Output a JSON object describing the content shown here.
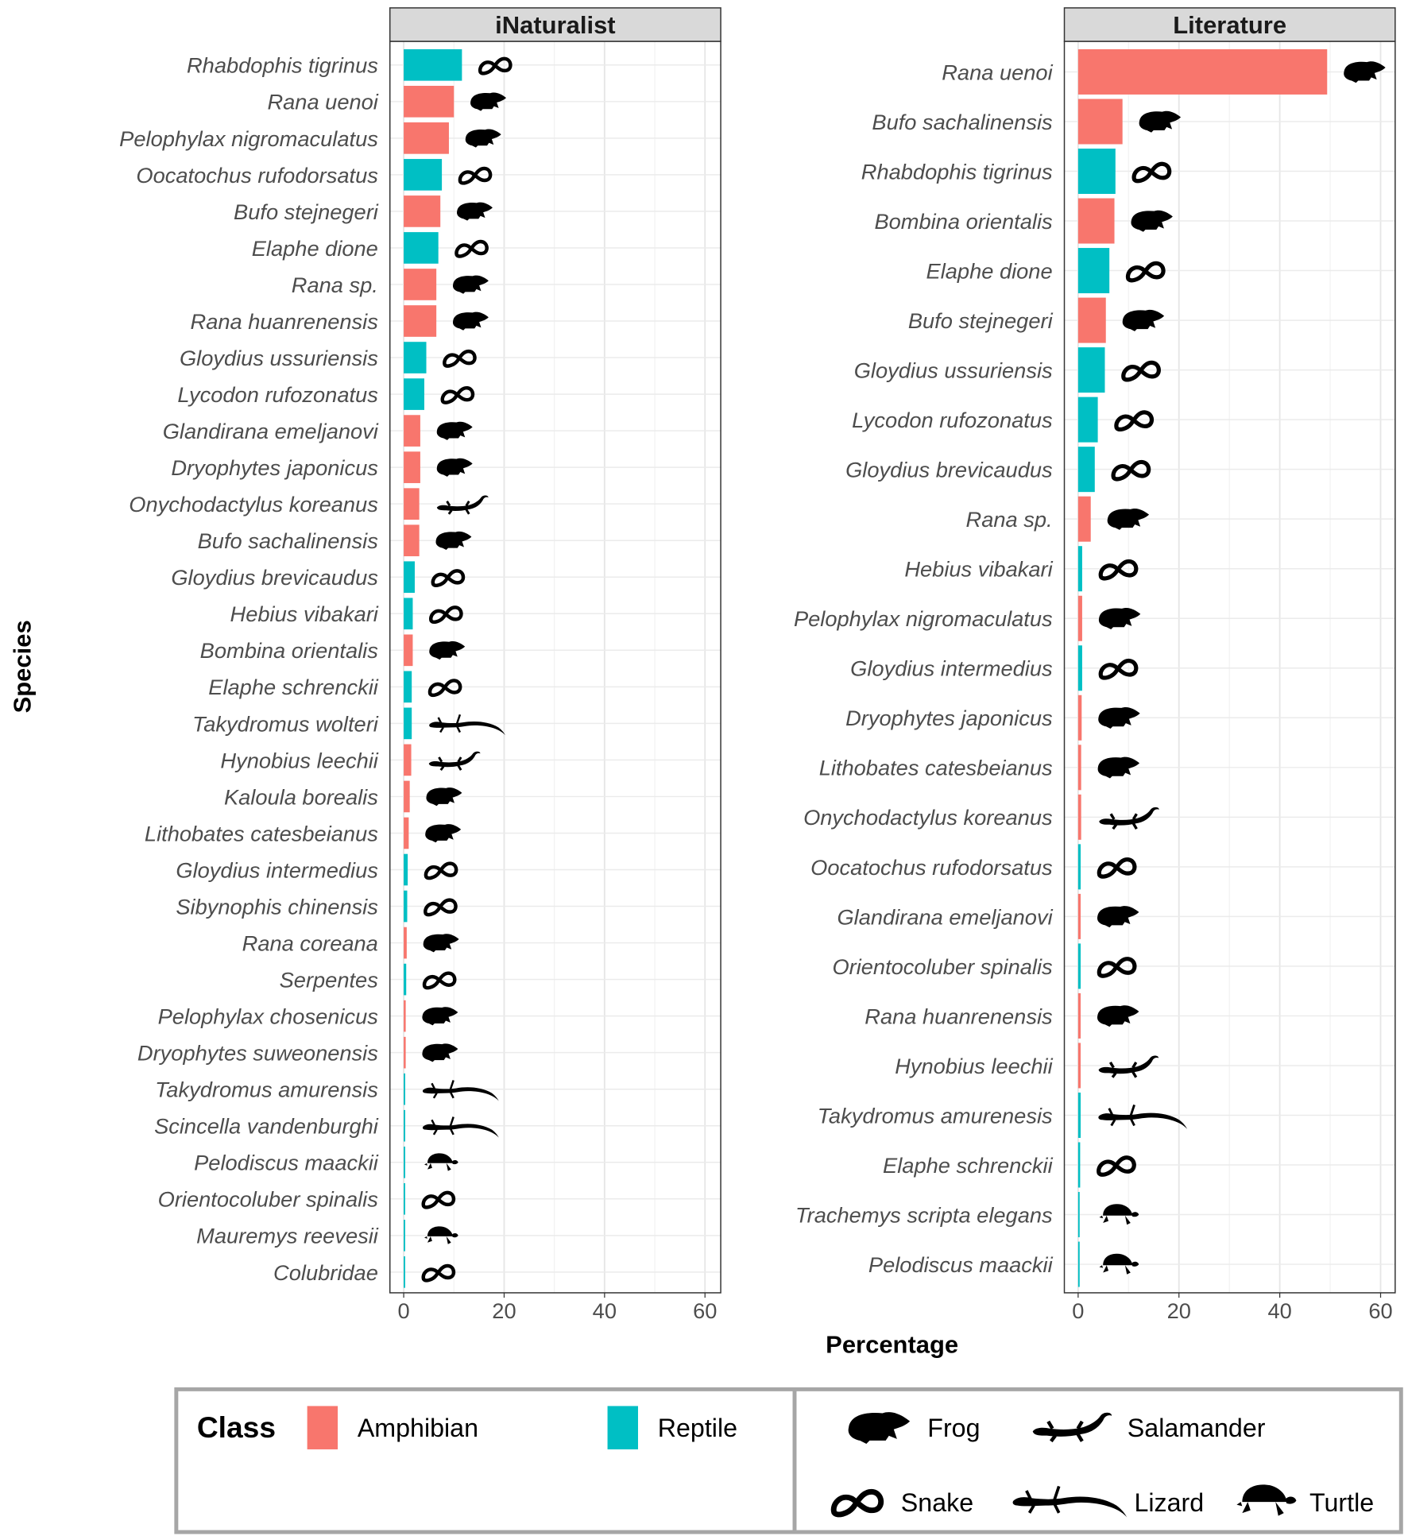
{
  "chart_data": [
    {
      "type": "bar",
      "orientation": "horizontal",
      "title": "iNaturalist",
      "xlim": [
        0,
        60
      ],
      "xticks": [
        0,
        20,
        40,
        60
      ],
      "species": [
        "Rhabdophis tigrinus",
        "Rana uenoi",
        "Pelophylax nigromaculatus",
        "Oocatochus rufodorsatus",
        "Bufo stejnegeri",
        "Elaphe dione",
        "Rana sp.",
        "Rana huanrenensis",
        "Gloydius ussuriensis",
        "Lycodon rufozonatus",
        "Glandirana emeljanovi",
        "Dryophytes japonicus",
        "Onychodactylus koreanus",
        "Bufo sachalinensis",
        "Gloydius brevicaudus",
        "Hebius vibakari",
        "Bombina orientalis",
        "Elaphe schrenckii",
        "Takydromus wolteri",
        "Hynobius leechii",
        "Kaloula borealis",
        "Lithobates catesbeianus",
        "Gloydius intermedius",
        "Sibynophis chinensis",
        "Rana coreana",
        "Serpentes",
        "Pelophylax chosenicus",
        "Dryophytes suweonensis",
        "Takydromus amurensis",
        "Scincella vandenburghi",
        "Pelodiscus maackii",
        "Orientocoluber spinalis",
        "Mauremys reevesii",
        "Colubridae"
      ],
      "values": [
        11.6,
        10.0,
        9.0,
        7.6,
        7.3,
        6.9,
        6.5,
        6.5,
        4.5,
        4.1,
        3.3,
        3.3,
        3.1,
        3.1,
        2.2,
        1.8,
        1.8,
        1.6,
        1.6,
        1.5,
        1.2,
        1.0,
        0.8,
        0.7,
        0.6,
        0.5,
        0.4,
        0.4,
        0.3,
        0.3,
        0.3,
        0.2,
        0.2,
        0.2
      ],
      "class": [
        "Reptile",
        "Amphibian",
        "Amphibian",
        "Reptile",
        "Amphibian",
        "Reptile",
        "Amphibian",
        "Amphibian",
        "Reptile",
        "Reptile",
        "Amphibian",
        "Amphibian",
        "Amphibian",
        "Amphibian",
        "Reptile",
        "Reptile",
        "Amphibian",
        "Reptile",
        "Reptile",
        "Amphibian",
        "Amphibian",
        "Amphibian",
        "Reptile",
        "Reptile",
        "Amphibian",
        "Reptile",
        "Amphibian",
        "Amphibian",
        "Reptile",
        "Reptile",
        "Reptile",
        "Reptile",
        "Reptile",
        "Reptile"
      ],
      "icon": [
        "snake",
        "frog",
        "frog",
        "snake",
        "frog",
        "snake",
        "frog",
        "frog",
        "snake",
        "snake",
        "frog",
        "frog",
        "salamander",
        "frog",
        "snake",
        "snake",
        "frog",
        "snake",
        "lizard",
        "salamander",
        "frog",
        "frog",
        "snake",
        "snake",
        "frog",
        "snake",
        "frog",
        "frog",
        "lizard",
        "lizard",
        "turtle",
        "snake",
        "turtle",
        "snake"
      ]
    },
    {
      "type": "bar",
      "orientation": "horizontal",
      "title": "Literature",
      "xlim": [
        0,
        60
      ],
      "xticks": [
        0,
        20,
        40,
        60
      ],
      "species": [
        "Rana uenoi",
        "Bufo sachalinensis",
        "Rhabdophis tigrinus",
        "Bombina orientalis",
        "Elaphe dione",
        "Bufo stejnegeri",
        "Gloydius ussuriensis",
        "Lycodon rufozonatus",
        "Gloydius brevicaudus",
        "Rana sp.",
        "Hebius vibakari",
        "Pelophylax nigromaculatus",
        "Gloydius intermedius",
        "Dryophytes japonicus",
        "Lithobates catesbeianus",
        "Onychodactylus koreanus",
        "Oocatochus rufodorsatus",
        "Glandirana emeljanovi",
        "Orientocoluber spinalis",
        "Rana huanrenensis",
        "Hynobius leechii",
        "Takydromus amurenesis",
        "Elaphe schrenckii",
        "Trachemys scripta elegans",
        "Pelodiscus maackii"
      ],
      "values": [
        49.4,
        8.8,
        7.4,
        7.2,
        6.2,
        5.5,
        5.3,
        3.9,
        3.3,
        2.5,
        0.8,
        0.8,
        0.8,
        0.7,
        0.6,
        0.6,
        0.5,
        0.5,
        0.5,
        0.5,
        0.5,
        0.5,
        0.4,
        0.3,
        0.3
      ],
      "class": [
        "Amphibian",
        "Amphibian",
        "Reptile",
        "Amphibian",
        "Reptile",
        "Amphibian",
        "Reptile",
        "Reptile",
        "Reptile",
        "Amphibian",
        "Reptile",
        "Amphibian",
        "Reptile",
        "Amphibian",
        "Amphibian",
        "Amphibian",
        "Reptile",
        "Amphibian",
        "Reptile",
        "Amphibian",
        "Amphibian",
        "Reptile",
        "Reptile",
        "Reptile",
        "Reptile"
      ],
      "icon": [
        "frog",
        "frog",
        "snake",
        "frog",
        "snake",
        "frog",
        "snake",
        "snake",
        "snake",
        "frog",
        "snake",
        "frog",
        "snake",
        "frog",
        "frog",
        "salamander",
        "snake",
        "frog",
        "snake",
        "frog",
        "salamander",
        "lizard",
        "snake",
        "turtle",
        "turtle"
      ]
    }
  ],
  "axes": {
    "xlabel": "Percentage",
    "ylabel": "Species"
  },
  "legend": {
    "title": "Class",
    "classes": [
      {
        "label": "Amphibian",
        "color": "#F8766D"
      },
      {
        "label": "Reptile",
        "color": "#00BFC4"
      }
    ],
    "animals": [
      {
        "icon": "frog",
        "label": "Frog"
      },
      {
        "icon": "salamander",
        "label": "Salamander"
      },
      {
        "icon": "snake",
        "label": "Snake"
      },
      {
        "icon": "lizard",
        "label": "Lizard"
      },
      {
        "icon": "turtle",
        "label": "Turtle"
      }
    ]
  },
  "colors": {
    "Amphibian": "#F8766D",
    "Reptile": "#00BFC4"
  }
}
